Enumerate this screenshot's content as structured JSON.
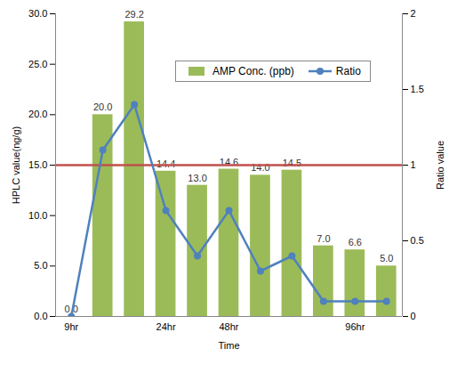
{
  "chart_data": {
    "type": "bar",
    "x_label": "Time",
    "y_label": "HPLC value(ng/g)",
    "y2_label": "Ratio value",
    "categories": [
      "9hr",
      null,
      null,
      "24hr",
      null,
      "48hr",
      null,
      null,
      null,
      "96hr",
      null
    ],
    "series": [
      {
        "name": "AMP Conc. (ppb)",
        "type": "bar",
        "color": "#9bbb59",
        "values": [
          0,
          20,
          29.2,
          14.4,
          13,
          14.6,
          14,
          14.5,
          7,
          6.6,
          5
        ],
        "value_labels": [
          "0.0",
          "20.0",
          "29.2",
          "14.4",
          "13.0",
          "14.6",
          "14.0",
          "14.5",
          "7.0",
          "6.6",
          "5.0"
        ],
        "data_labels": true
      },
      {
        "name": "Ratio",
        "type": "line",
        "color": "#4f81bd",
        "marker": "circle",
        "axis": "y2",
        "values": [
          0,
          1.1,
          1.4,
          0.7,
          0.4,
          0.7,
          0.3,
          0.4,
          0.1,
          0.1,
          0.1
        ]
      }
    ],
    "ylim": [
      0,
      30
    ],
    "yticks": [
      {
        "value": 0,
        "label": "0.0"
      },
      {
        "value": 5,
        "label": "5.0"
      },
      {
        "value": 10,
        "label": "10.0"
      },
      {
        "value": 15,
        "label": "15.0"
      },
      {
        "value": 20,
        "label": "20.0"
      },
      {
        "value": 25,
        "label": "25.0"
      },
      {
        "value": 30,
        "label": "30.0"
      }
    ],
    "y2lim": [
      0,
      2
    ],
    "y2ticks": [
      0,
      0.5,
      1,
      1.5,
      2
    ],
    "reference_line": {
      "value": 1,
      "axis": "y2",
      "color": "#c0504d"
    },
    "legend": "top"
  }
}
